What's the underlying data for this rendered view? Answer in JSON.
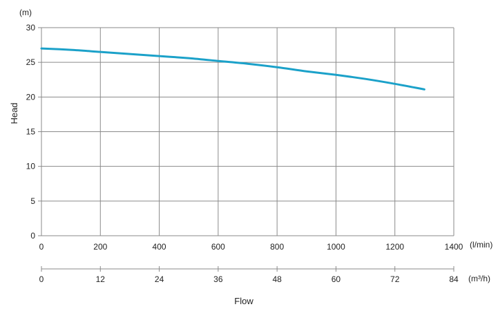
{
  "chart_data": {
    "type": "line",
    "title": "",
    "xlabel": "Flow",
    "ylabel": "Head",
    "y_unit": "(m)",
    "x_unit": "(l/min)",
    "x2_unit": "(m³/h)",
    "xlim": [
      0,
      1400
    ],
    "ylim": [
      0,
      30
    ],
    "x_ticks": [
      "0",
      "200",
      "400",
      "600",
      "800",
      "1000",
      "1200",
      "1400"
    ],
    "x2_ticks": [
      "0",
      "12",
      "24",
      "36",
      "48",
      "60",
      "72",
      "84"
    ],
    "y_ticks": [
      "0",
      "5",
      "10",
      "15",
      "20",
      "25",
      "30"
    ],
    "grid": true,
    "line_color": "#1ba1c9",
    "series": [
      {
        "x": [
          0,
          100,
          200,
          300,
          400,
          500,
          600,
          700,
          800,
          900,
          1000,
          1100,
          1200,
          1300
        ],
        "y": [
          27.0,
          26.8,
          26.5,
          26.2,
          25.9,
          25.6,
          25.2,
          24.8,
          24.3,
          23.7,
          23.2,
          22.6,
          21.9,
          21.1
        ]
      }
    ]
  }
}
